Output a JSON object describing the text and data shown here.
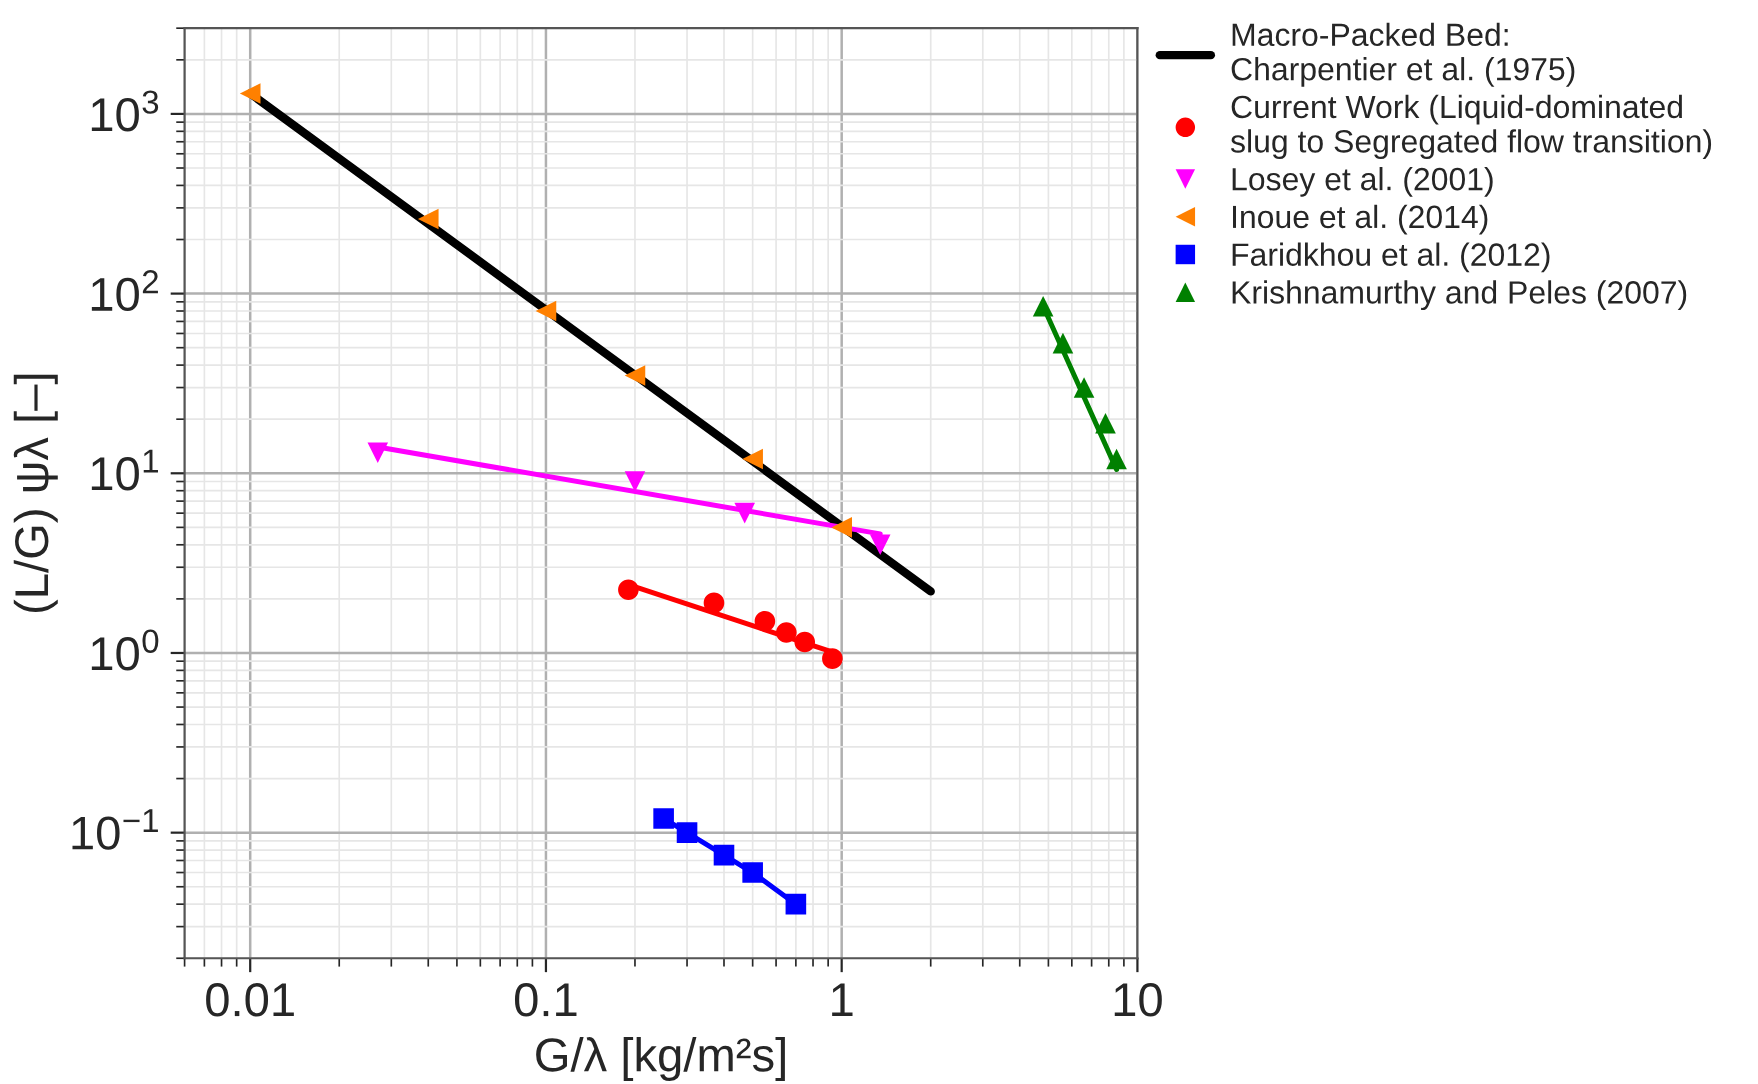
{
  "chart_data": {
    "type": "scatter",
    "xlabel": "G/λ [kg/m²s]",
    "ylabel": "(L/G) ψλ [–]",
    "log": "xy",
    "grid": true,
    "legend": "top right",
    "xlim": [
      0.006,
      10
    ],
    "xticks": [
      0.01,
      0.1,
      1,
      10
    ],
    "ylim": [
      0.02,
      3000
    ],
    "yticks": [
      {
        "value": 0.1,
        "label": "10$^{−1}$"
      },
      {
        "value": 1,
        "label": "10$^{0}$"
      },
      {
        "value": 10,
        "label": "10$^{1}$"
      },
      {
        "value": 100,
        "label": "10$^{2}$"
      },
      {
        "value": 1000,
        "label": "10$^{3}$"
      }
    ],
    "series": [
      {
        "type": "line",
        "name": "Macro-Packed Bed:\nCharpentier et al. (1975)",
        "color": "#000000",
        "x": [
          0.01,
          2
        ],
        "values": [
          1300,
          2.2
        ]
      },
      {
        "name": "Current Work (Liquid-dominated\nslug to Segregated flow transition)",
        "color": "#ff0000",
        "marker": "circle",
        "x": [
          0.19,
          0.37,
          0.55,
          0.65,
          0.75,
          0.93
        ],
        "values": [
          2.25,
          1.9,
          1.5,
          1.3,
          1.15,
          0.93
        ]
      },
      {
        "type": "line",
        "color": "#ff0000",
        "x": [
          0.19,
          0.95
        ],
        "values": [
          2.4,
          1.0
        ]
      },
      {
        "name": "Losey et al. (2001)",
        "color": "#ff00ff",
        "marker": "triangle_down",
        "x": [
          0.027,
          0.2,
          0.47,
          1.35
        ],
        "values": [
          13,
          9,
          6,
          4
        ]
      },
      {
        "type": "line",
        "color": "#ff00ff",
        "x": [
          0.027,
          1.35
        ],
        "values": [
          14,
          4.6
        ]
      },
      {
        "name": "Inoue et al. (2014)",
        "color": "#ff8000",
        "marker": "triangle_left",
        "x": [
          0.01,
          0.04,
          0.1,
          0.2,
          0.5,
          1
        ],
        "values": [
          1300,
          260,
          80,
          35,
          12,
          5
        ]
      },
      {
        "name": "Faridkhou et al. (2012)",
        "color": "#0000ff",
        "marker": "square",
        "x": [
          0.25,
          0.3,
          0.4,
          0.5,
          0.7
        ],
        "values": [
          0.12,
          0.1,
          0.075,
          0.06,
          0.04
        ]
      },
      {
        "type": "line",
        "color": "#0000ff",
        "x": [
          0.25,
          0.3,
          0.4,
          0.5,
          0.7
        ],
        "values": [
          0.12,
          0.1,
          0.075,
          0.06,
          0.04
        ]
      },
      {
        "name": "Krishnamurthy and Peles (2007)",
        "color": "#008000",
        "marker": "triangle",
        "x": [
          4.8,
          5.6,
          6.6,
          7.8,
          8.5
        ],
        "values": [
          85,
          53,
          30,
          19,
          12
        ]
      },
      {
        "type": "line",
        "color": "#008000",
        "x": [
          4.8,
          8.5
        ],
        "values": [
          85,
          10.5
        ]
      }
    ]
  }
}
